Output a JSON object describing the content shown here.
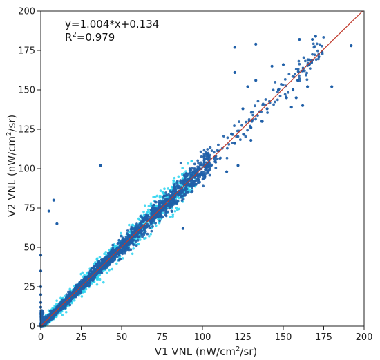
{
  "chart_data": {
    "type": "scatter",
    "xlabel": {
      "pre": "V1 VNL (nW/cm",
      "sup": "2",
      "post": "/sr)"
    },
    "ylabel": {
      "pre": "V2 VNL (nW/cm",
      "sup": "2",
      "post": "/sr)"
    },
    "xlim": [
      0,
      200
    ],
    "ylim": [
      0,
      200
    ],
    "xticks": [
      0,
      25,
      50,
      75,
      100,
      125,
      150,
      175,
      200
    ],
    "yticks": [
      0,
      25,
      50,
      75,
      100,
      125,
      150,
      175,
      200
    ],
    "grid": false,
    "annotations": {
      "equation": "y=1.004*x+0.134",
      "r2_pre": "R",
      "r2_sup": "2",
      "r2_post": "=0.979"
    },
    "fit_line": {
      "slope": 1.004,
      "intercept": 0.134
    },
    "colors": {
      "points": "#1f5fa8",
      "dense_points": "#2ad4f0",
      "fit_line": "#c0392b",
      "axis": "#222222"
    },
    "outliers": [
      [
        192,
        178
      ],
      [
        170,
        184
      ],
      [
        168,
        182
      ],
      [
        160,
        182
      ],
      [
        133,
        179
      ],
      [
        120,
        177
      ],
      [
        172,
        171
      ],
      [
        166,
        166
      ],
      [
        150,
        166
      ],
      [
        143,
        165
      ],
      [
        162,
        162
      ],
      [
        120,
        161
      ],
      [
        159,
        156
      ],
      [
        133,
        156
      ],
      [
        165,
        152
      ],
      [
        180,
        152
      ],
      [
        128,
        152
      ],
      [
        156,
        150
      ],
      [
        152,
        145
      ],
      [
        158,
        145
      ],
      [
        162,
        140
      ],
      [
        155,
        139
      ],
      [
        125,
        138
      ],
      [
        137,
        130
      ],
      [
        130,
        126
      ],
      [
        118,
        122
      ],
      [
        130,
        118
      ],
      [
        120,
        116
      ],
      [
        122,
        102
      ],
      [
        115,
        98
      ],
      [
        96,
        90
      ],
      [
        83,
        86
      ],
      [
        37,
        102
      ],
      [
        5,
        73
      ],
      [
        8,
        80
      ],
      [
        10,
        65
      ],
      [
        0,
        45
      ],
      [
        0,
        35
      ],
      [
        0,
        25
      ],
      [
        0,
        20
      ],
      [
        0,
        15
      ],
      [
        0,
        12
      ],
      [
        88,
        62
      ],
      [
        95,
        98
      ],
      [
        140,
        138
      ],
      [
        147,
        150
      ],
      [
        174,
        174
      ]
    ]
  }
}
